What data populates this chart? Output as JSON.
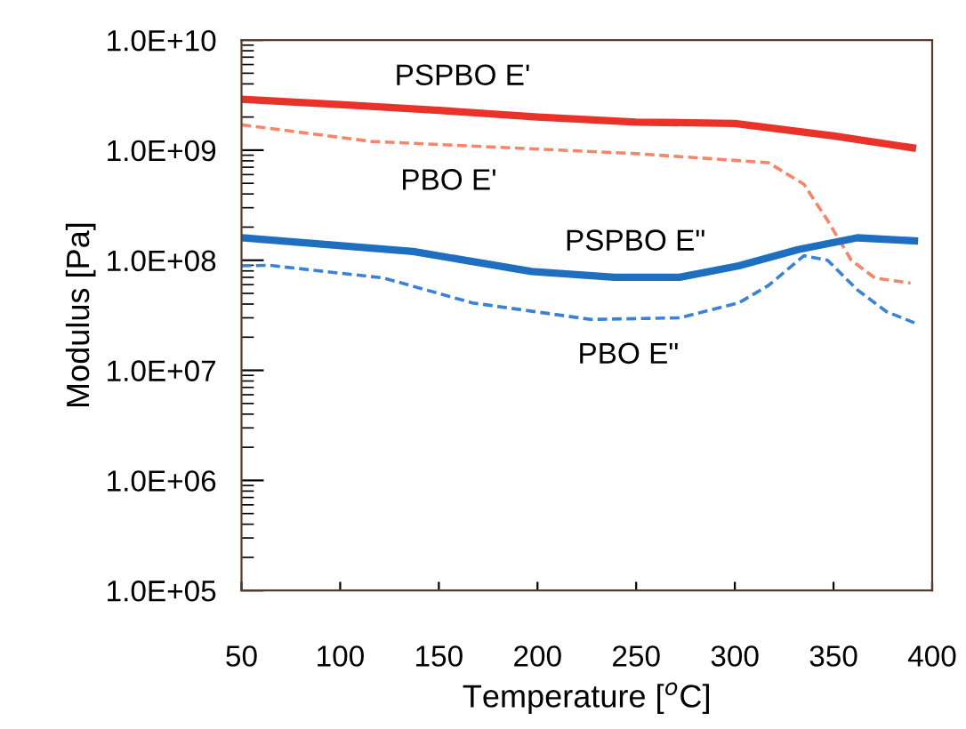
{
  "chart_data": {
    "type": "line",
    "xlabel": "Temperature [$^{o}$C]",
    "ylabel": "Modulus [Pa]",
    "log": "y",
    "xlim": [
      50,
      400
    ],
    "xticks": [
      50,
      100,
      150,
      200,
      250,
      300,
      350,
      400
    ],
    "ylim": [
      100000,
      10000000000
    ],
    "yticks": [
      {
        "value": 100000,
        "label": "1.0E+05"
      },
      {
        "value": 1000000,
        "label": "1.0E+06"
      },
      {
        "value": 10000000,
        "label": "1.0E+07"
      },
      {
        "value": 100000000,
        "label": "1.0E+08"
      },
      {
        "value": 1000000000,
        "label": "1.0E+09"
      },
      {
        "value": 10000000000,
        "label": "1.0E+10"
      }
    ],
    "grid": false,
    "legend": false,
    "series": [
      {
        "name": "PSPBO E'",
        "color": "#e8322a",
        "line_style": "solid",
        "x": [
          50,
          100,
          150,
          200,
          250,
          300,
          350,
          390
        ],
        "values": [
          2900000000.0,
          2600000000.0,
          2300000000.0,
          2000000000.0,
          1800000000.0,
          1750000000.0,
          1350000000.0,
          1050000000.0
        ]
      },
      {
        "name": "PBO E'",
        "color": "#f4866a",
        "line_style": "dashed",
        "x": [
          50,
          116,
          250,
          317,
          335,
          347,
          359,
          371,
          389
        ],
        "values": [
          1700000000.0,
          1200000000.0,
          930000000.0,
          770000000.0,
          490000000.0,
          230000000.0,
          100000000.0,
          69000000.0,
          62000000.0
        ]
      },
      {
        "name": "PSPBO E\"",
        "color": "#1f6fc0",
        "line_style": "solid",
        "x": [
          50,
          137,
          197,
          239,
          272,
          302,
          332,
          362,
          391
        ],
        "values": [
          160000000.0,
          120000000.0,
          79000000.0,
          70000000.0,
          70000000.0,
          89000000.0,
          125000000.0,
          160000000.0,
          150000000.0
        ]
      },
      {
        "name": "PBO E\"",
        "color": "#3b82d6",
        "line_style": "dashed",
        "x": [
          50,
          64,
          122,
          167,
          227,
          272,
          302,
          317,
          335,
          347,
          362,
          377,
          391
        ],
        "values": [
          89000000.0,
          90000000.0,
          69000000.0,
          41000000.0,
          29000000.0,
          30000000.0,
          41000000.0,
          59000000.0,
          110000000.0,
          100000000.0,
          54000000.0,
          34000000.0,
          27000000.0
        ]
      }
    ]
  }
}
